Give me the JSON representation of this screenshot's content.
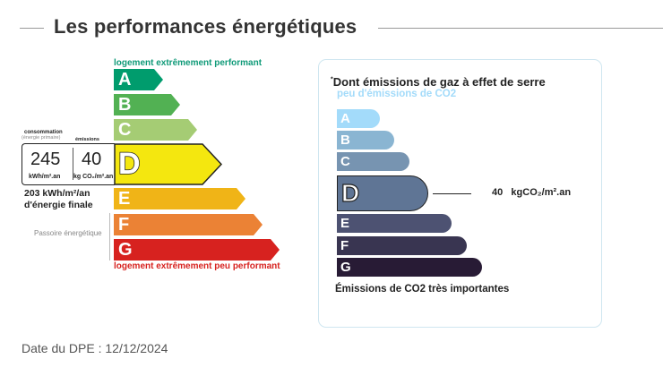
{
  "title": "Les performances énergétiques",
  "energy": {
    "top_label": "logement extrêmement performant",
    "bottom_label": "logement extrêmement peu performant",
    "classes": [
      "A",
      "B",
      "C",
      "D",
      "E",
      "F",
      "G"
    ],
    "colors": [
      "#009c6d",
      "#52b153",
      "#a5cc74",
      "#f4e70f",
      "#f0b417",
      "#eb8235",
      "#d7221f"
    ],
    "current": "D",
    "consumption_label": "consommation",
    "consumption_sub": "(énergie primaire)",
    "emissions_label": "émissions",
    "consumption_value": "245",
    "consumption_unit": "kWh/m².an",
    "emissions_value": "40",
    "emissions_unit": "kg CO₂/m².an",
    "final_line1": "203 kWh/m²/an",
    "final_line2": "d'énergie finale",
    "passoire": "Passoire énergétique"
  },
  "ges": {
    "title": "Dont émissions de gaz à effet de serre",
    "title_mark": "*",
    "top_label": "peu d'émissions de CO2",
    "bottom_label": "Émissions de CO2 très importantes",
    "classes": [
      "A",
      "B",
      "C",
      "D",
      "E",
      "F",
      "G"
    ],
    "colors": [
      "#a3dbfa",
      "#8ab5d2",
      "#7794b1",
      "#5f7595",
      "#4d5272",
      "#393551",
      "#281b35"
    ],
    "current": "D",
    "value": "40",
    "unit": "kgCO₂/m².an"
  },
  "date": "Date du DPE : 12/12/2024"
}
